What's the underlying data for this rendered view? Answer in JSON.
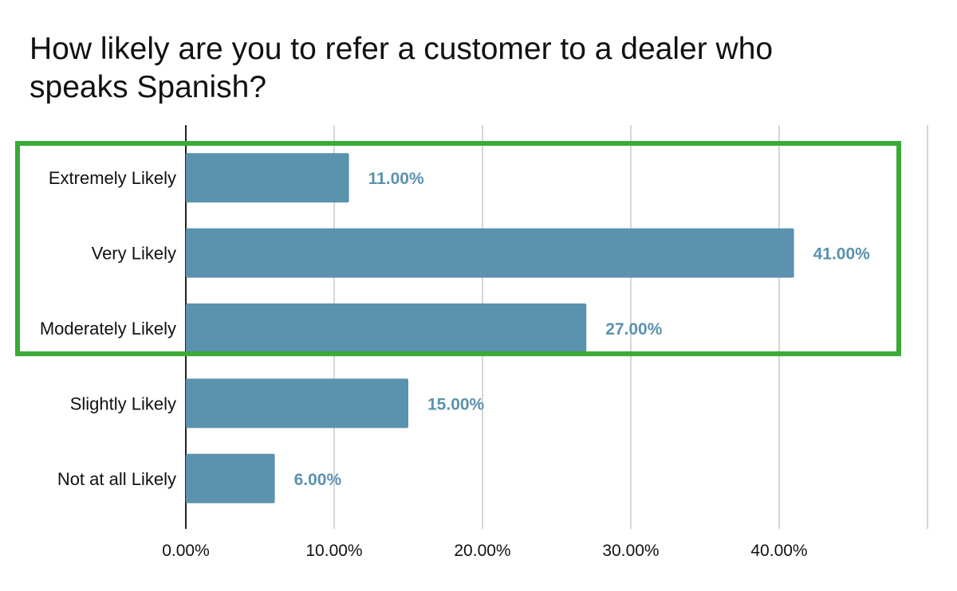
{
  "chart_data": {
    "type": "bar",
    "orientation": "horizontal",
    "title": "How likely are you to refer a customer to a dealer who speaks Spanish?",
    "xlabel": "",
    "ylabel": "",
    "categories": [
      "Extremely Likely",
      "Very Likely",
      "Moderately Likely",
      "Slightly Likely",
      "Not at all Likely"
    ],
    "values": [
      11.0,
      41.0,
      27.0,
      15.0,
      6.0
    ],
    "data_labels": [
      "11.00%",
      "41.00%",
      "27.00%",
      "15.00%",
      "6.00%"
    ],
    "xlim": [
      0,
      50
    ],
    "xticks": [
      0,
      10,
      20,
      30,
      40
    ],
    "xtick_labels": [
      "0.00%",
      "10.00%",
      "20.00%",
      "30.00%",
      "40.00%"
    ],
    "grid": "vertical",
    "legend": "none",
    "bar_color": "#5b92ae",
    "label_color": "#5b92ae",
    "highlight": {
      "categories": [
        "Extremely Likely",
        "Very Likely",
        "Moderately Likely"
      ],
      "color": "#3aaa35"
    }
  }
}
